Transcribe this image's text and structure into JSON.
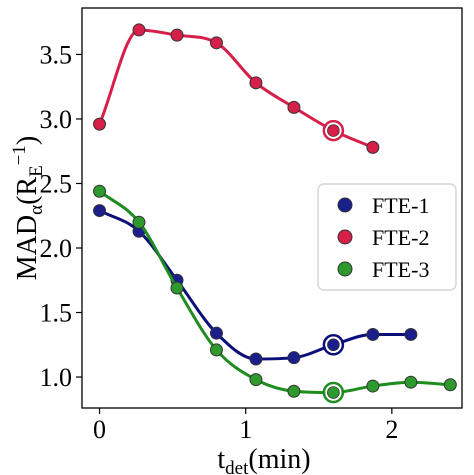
{
  "chart_data": {
    "type": "line",
    "xlabel": {
      "main": "t",
      "sub": "det",
      "rest": "(min)"
    },
    "ylabel": {
      "main": "MAD",
      "sub": "α",
      "pre": "(R",
      "sub2": "E",
      "sup": "−1",
      "post": ")"
    },
    "xlim": [
      -0.12,
      2.48
    ],
    "ylim": [
      0.76,
      3.86
    ],
    "xticks": [
      0,
      1,
      2
    ],
    "yticks": [
      1.0,
      1.5,
      2.0,
      2.5,
      3.0,
      3.5
    ],
    "xtick_labels": [
      "0",
      "1",
      "2"
    ],
    "ytick_labels": [
      "1.0",
      "1.5",
      "2.0",
      "2.5",
      "3.0",
      "3.5"
    ],
    "legend_position": "right",
    "grid": false,
    "series": [
      {
        "name": "FTE-1",
        "color": "#1a1f8c",
        "line_color": "#0b0f7a",
        "x": [
          0.0,
          0.27,
          0.53,
          0.8,
          1.07,
          1.33,
          1.6,
          1.87,
          2.13
        ],
        "y": [
          2.29,
          2.13,
          1.75,
          1.34,
          1.14,
          1.15,
          1.25,
          1.33,
          1.33
        ],
        "highlight_index": 6
      },
      {
        "name": "FTE-2",
        "color": "#d6204a",
        "line_color": "#d6204a",
        "x": [
          0.0,
          0.27,
          0.53,
          0.8,
          1.07,
          1.33,
          1.6,
          1.87
        ],
        "y": [
          2.96,
          3.69,
          3.65,
          3.59,
          3.28,
          3.09,
          2.91,
          2.78
        ],
        "highlight_index": 6
      },
      {
        "name": "FTE-3",
        "color": "#2e9a2e",
        "line_color": "#1f8c1f",
        "x": [
          0.0,
          0.27,
          0.53,
          0.8,
          1.07,
          1.33,
          1.6,
          1.87,
          2.13,
          2.4
        ],
        "y": [
          2.44,
          2.2,
          1.69,
          1.21,
          0.98,
          0.89,
          0.88,
          0.93,
          0.96,
          0.94
        ],
        "highlight_index": 6
      }
    ]
  }
}
